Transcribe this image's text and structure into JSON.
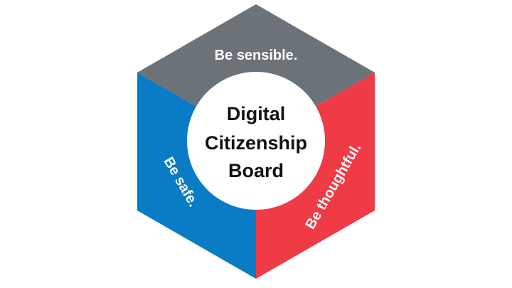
{
  "board": {
    "title_lines": [
      "Digital",
      "Citizenship",
      "Board"
    ]
  },
  "faces": {
    "top": {
      "label": "Be sensible.",
      "color": "#6b7278"
    },
    "left": {
      "label": "Be safe.",
      "color": "#0a7cc6"
    },
    "right": {
      "label": "Be thoughtful.",
      "color": "#ee3b46"
    }
  },
  "colors": {
    "center_circle": "#ffffff",
    "title_text": "#111111",
    "face_text": "#ffffff"
  }
}
